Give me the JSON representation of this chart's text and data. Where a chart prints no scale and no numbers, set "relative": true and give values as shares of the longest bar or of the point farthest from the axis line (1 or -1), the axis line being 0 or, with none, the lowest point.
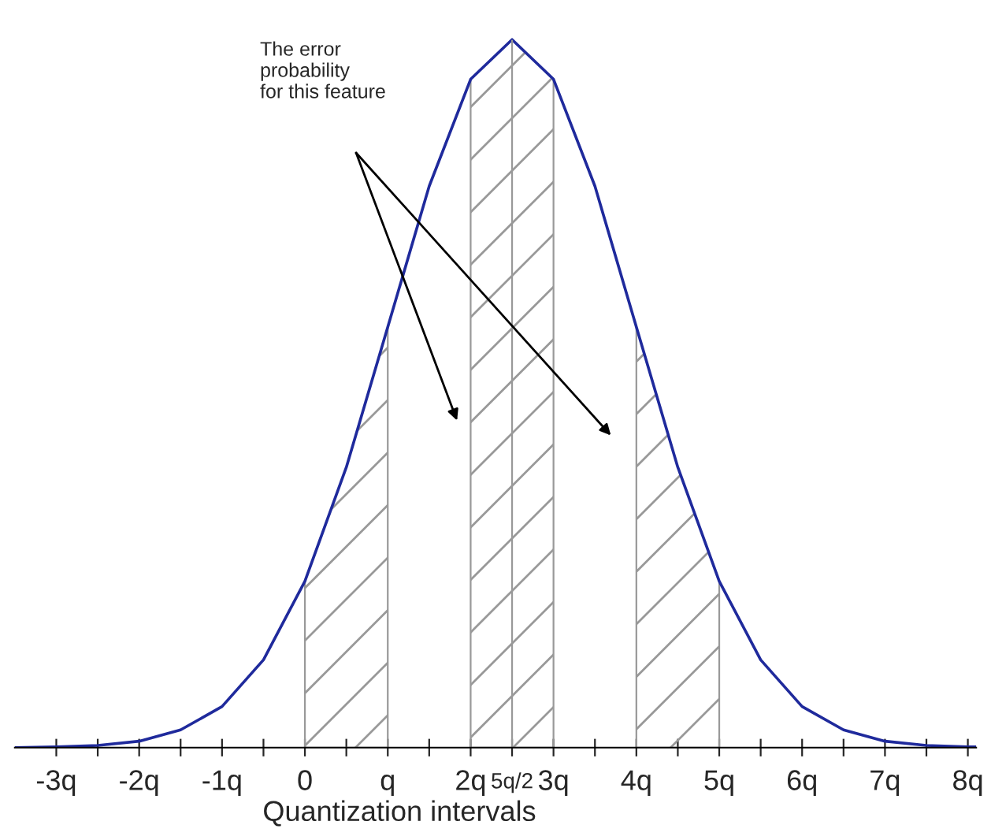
{
  "chart_data": {
    "type": "line",
    "relative": true,
    "xlabel": "Quantization intervals",
    "x": [
      -3.5,
      -3,
      -2.5,
      -2,
      -1.5,
      -1,
      -0.5,
      0,
      0.5,
      1,
      1.5,
      2,
      2.5,
      3,
      3.5,
      4,
      4.5,
      5,
      5.5,
      6,
      6.5,
      7,
      7.5,
      8,
      8.1
    ],
    "series": [
      {
        "color": "#1f2a9c",
        "values": [
          0.0,
          0.001,
          0.003,
          0.009,
          0.025,
          0.058,
          0.124,
          0.235,
          0.396,
          0.594,
          0.793,
          0.944,
          1.0,
          0.944,
          0.793,
          0.594,
          0.396,
          0.235,
          0.124,
          0.058,
          0.025,
          0.009,
          0.003,
          0.001,
          0.001
        ]
      }
    ],
    "xlim": [
      -3.5,
      8.1
    ],
    "xticks": [
      {
        "value": -3,
        "label": "-3q"
      },
      {
        "value": -2.5,
        "label": null
      },
      {
        "value": -2,
        "label": "-2q"
      },
      {
        "value": -1.5,
        "label": null
      },
      {
        "value": -1,
        "label": "-1q"
      },
      {
        "value": -0.5,
        "label": null
      },
      0,
      {
        "value": 0.5,
        "label": null
      },
      {
        "value": 1,
        "label": "q"
      },
      {
        "value": 1.5,
        "label": null
      },
      {
        "value": 2,
        "label": "2q"
      },
      {
        "value": 2.5,
        "label": "5q/2"
      },
      {
        "value": 3,
        "label": "3q"
      },
      {
        "value": 3.5,
        "label": null
      },
      {
        "value": 4,
        "label": "4q"
      },
      {
        "value": 4.5,
        "label": null
      },
      {
        "value": 5,
        "label": "5q"
      },
      {
        "value": 5.5,
        "label": null
      },
      {
        "value": 6,
        "label": "6q"
      },
      {
        "value": 6.5,
        "label": null
      },
      {
        "value": 7,
        "label": "7q"
      },
      {
        "value": 7.5,
        "label": null
      },
      {
        "value": 8,
        "label": "8q"
      }
    ],
    "bands": [
      {
        "axis": "x",
        "from": 0,
        "to": 1,
        "color": "#999999"
      },
      {
        "axis": "x",
        "from": 2,
        "to": 3,
        "color": "#999999"
      },
      {
        "axis": "x",
        "from": 4,
        "to": 5,
        "color": "#999999"
      }
    ],
    "ref_lines": [
      {
        "axis": "x",
        "value": 2.5,
        "color": "#999999"
      }
    ],
    "annotations": [
      "The error\nprobability\nfor this feature"
    ],
    "grid": false,
    "legend": false
  }
}
